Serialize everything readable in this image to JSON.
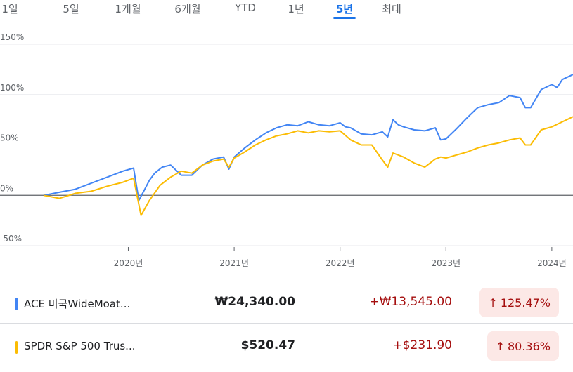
{
  "tabs": [
    {
      "label": "1일",
      "active": false
    },
    {
      "label": "5일",
      "active": false
    },
    {
      "label": "1개월",
      "active": false
    },
    {
      "label": "6개월",
      "active": false
    },
    {
      "label": "YTD",
      "active": false
    },
    {
      "label": "1년",
      "active": false
    },
    {
      "label": "5년",
      "active": true
    },
    {
      "label": "최대",
      "active": false
    }
  ],
  "holdings": [
    {
      "name": "ACE 미국WideMoat...",
      "price": "₩24,340.00",
      "change": "+₩13,545.00",
      "percent": "125.47%",
      "color": "#4285f4"
    },
    {
      "name": "SPDR S&P 500 Trus...",
      "price": "$520.47",
      "change": "+$231.90",
      "percent": "80.36%",
      "color": "#fbbc04"
    }
  ],
  "chart_data": {
    "type": "line",
    "y_ticks": [
      "150%",
      "100%",
      "50%",
      "0%",
      "-50%"
    ],
    "y_tick_values": [
      150,
      100,
      50,
      0,
      -50
    ],
    "x_ticks": [
      "2020년",
      "2021년",
      "2022년",
      "2023년",
      "2024년"
    ],
    "x_tick_values": [
      2020,
      2021,
      2022,
      2023,
      2024
    ],
    "xlim": [
      2019.2,
      2024.2
    ],
    "ylim": [
      -50,
      150
    ],
    "zero_line": 0,
    "grid": "horizontal",
    "series": [
      {
        "color": "#4285f4",
        "x": [
          2019.2,
          2019.35,
          2019.5,
          2019.65,
          2019.8,
          2019.95,
          2020.05,
          2020.1,
          2020.15,
          2020.2,
          2020.25,
          2020.32,
          2020.4,
          2020.5,
          2020.6,
          2020.7,
          2020.8,
          2020.9,
          2020.95,
          2021.0,
          2021.1,
          2021.2,
          2021.3,
          2021.4,
          2021.5,
          2021.6,
          2021.7,
          2021.8,
          2021.9,
          2022.0,
          2022.05,
          2022.1,
          2022.2,
          2022.3,
          2022.4,
          2022.45,
          2022.5,
          2022.55,
          2022.6,
          2022.7,
          2022.8,
          2022.9,
          2022.95,
          2023.0,
          2023.1,
          2023.2,
          2023.3,
          2023.4,
          2023.5,
          2023.6,
          2023.7,
          2023.75,
          2023.8,
          2023.9,
          2024.0,
          2024.05,
          2024.1,
          2024.2
        ],
        "y": [
          0,
          3,
          6,
          12,
          18,
          24,
          27,
          -5,
          5,
          15,
          22,
          28,
          30,
          20,
          20,
          30,
          36,
          38,
          26,
          38,
          47,
          55,
          62,
          67,
          70,
          69,
          73,
          70,
          69,
          72,
          68,
          67,
          61,
          60,
          63,
          58,
          75,
          70,
          68,
          65,
          64,
          67,
          55,
          56,
          66,
          77,
          87,
          90,
          92,
          99,
          97,
          87,
          87,
          105,
          110,
          107,
          115,
          120
        ]
      },
      {
        "color": "#fbbc04",
        "x": [
          2019.2,
          2019.35,
          2019.5,
          2019.65,
          2019.8,
          2019.95,
          2020.05,
          2020.12,
          2020.2,
          2020.3,
          2020.4,
          2020.5,
          2020.6,
          2020.7,
          2020.8,
          2020.9,
          2020.95,
          2021.0,
          2021.1,
          2021.2,
          2021.3,
          2021.4,
          2021.5,
          2021.6,
          2021.7,
          2021.8,
          2021.9,
          2022.0,
          2022.1,
          2022.2,
          2022.3,
          2022.4,
          2022.45,
          2022.5,
          2022.6,
          2022.7,
          2022.8,
          2022.9,
          2022.95,
          2023.0,
          2023.1,
          2023.2,
          2023.3,
          2023.4,
          2023.5,
          2023.6,
          2023.7,
          2023.75,
          2023.8,
          2023.9,
          2024.0,
          2024.1,
          2024.2
        ],
        "y": [
          0,
          -3,
          2,
          4,
          9,
          13,
          17,
          -20,
          -5,
          10,
          18,
          24,
          22,
          30,
          34,
          36,
          28,
          37,
          43,
          50,
          55,
          59,
          61,
          64,
          62,
          64,
          63,
          64,
          55,
          50,
          50,
          35,
          28,
          42,
          38,
          32,
          28,
          36,
          38,
          37,
          40,
          43,
          47,
          50,
          52,
          55,
          57,
          50,
          50,
          65,
          68,
          73,
          78
        ]
      }
    ]
  }
}
